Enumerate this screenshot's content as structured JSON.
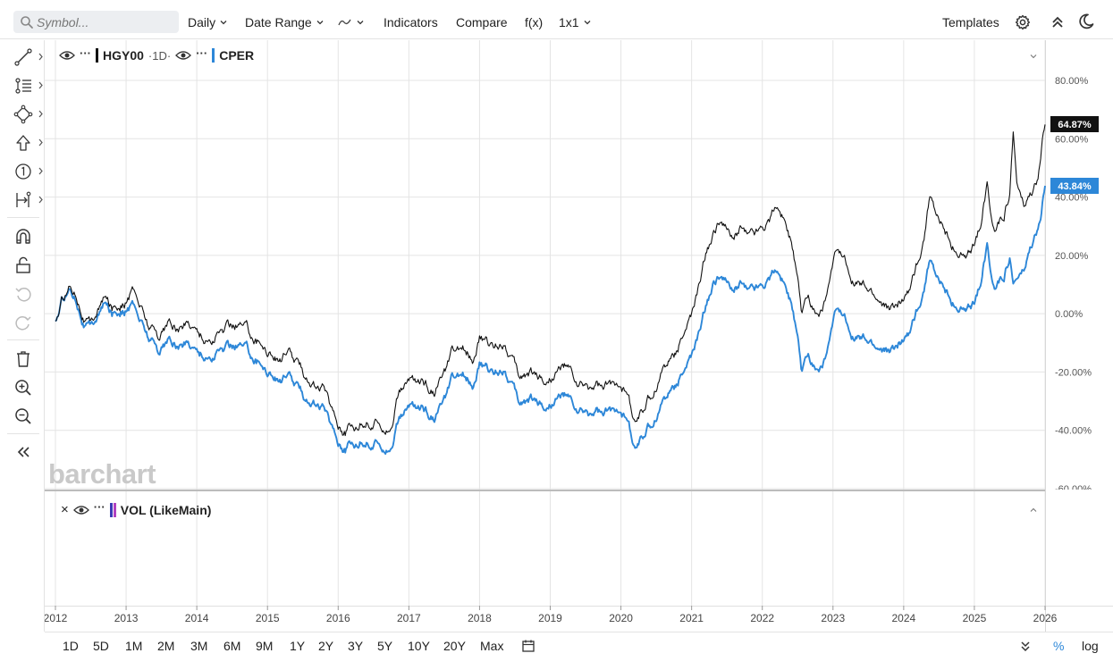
{
  "toolbar": {
    "symbol_placeholder": "Symbol...",
    "interval": "Daily",
    "date_range": "Date Range",
    "indicators": "Indicators",
    "compare": "Compare",
    "fx": "f(x)",
    "layout": "1x1",
    "templates": "Templates"
  },
  "legend": {
    "main_symbol": "HGY00",
    "main_interval": "·1D·",
    "compare_symbol": "CPER",
    "main_color": "#111111",
    "compare_color": "#2d87d8",
    "menu_dots": "···"
  },
  "watermark": "barchart",
  "volume_pane": {
    "label": "VOL (LikeMain)",
    "close": "×",
    "menu_dots": "···"
  },
  "y_axis": {
    "ticks": [
      "80.00%",
      "60.00%",
      "40.00%",
      "20.00%",
      "0.00%",
      "-20.00%",
      "-40.00%",
      "-60.00%"
    ]
  },
  "x_axis": {
    "ticks": [
      "2012",
      "2013",
      "2014",
      "2015",
      "2016",
      "2017",
      "2018",
      "2019",
      "2020",
      "2021",
      "2022",
      "2023",
      "2024",
      "2025",
      "2026"
    ]
  },
  "last_values": {
    "main": "64.87%",
    "compare": "43.84%"
  },
  "bottom": {
    "ranges": [
      "1D",
      "5D",
      "1M",
      "2M",
      "3M",
      "6M",
      "9M",
      "1Y",
      "2Y",
      "3Y",
      "5Y",
      "10Y",
      "20Y",
      "Max"
    ],
    "percent": "%",
    "log": "log"
  },
  "chart_data": {
    "type": "line",
    "ylim": [
      -60,
      80
    ],
    "x_range": [
      2012.0,
      2026.0
    ],
    "series": [
      {
        "name": "HGY00",
        "color": "#111111",
        "points": [
          [
            2012.0,
            -3
          ],
          [
            2012.1,
            5
          ],
          [
            2012.2,
            10
          ],
          [
            2012.3,
            8
          ],
          [
            2012.4,
            0
          ],
          [
            2012.5,
            -4
          ],
          [
            2012.6,
            2
          ],
          [
            2012.7,
            5
          ],
          [
            2012.8,
            2
          ],
          [
            2012.9,
            4
          ],
          [
            2013.0,
            5
          ],
          [
            2013.1,
            8
          ],
          [
            2013.2,
            3
          ],
          [
            2013.3,
            -3
          ],
          [
            2013.45,
            -7
          ],
          [
            2013.6,
            -3
          ],
          [
            2013.75,
            -5
          ],
          [
            2013.9,
            -3
          ],
          [
            2014.0,
            -5
          ],
          [
            2014.1,
            -8
          ],
          [
            2014.2,
            -9
          ],
          [
            2014.3,
            -7
          ],
          [
            2014.45,
            -5
          ],
          [
            2014.6,
            -3
          ],
          [
            2014.75,
            -6
          ],
          [
            2014.9,
            -10
          ],
          [
            2015.0,
            -12
          ],
          [
            2015.15,
            -15
          ],
          [
            2015.3,
            -14
          ],
          [
            2015.4,
            -17
          ],
          [
            2015.5,
            -20
          ],
          [
            2015.6,
            -22
          ],
          [
            2015.7,
            -25
          ],
          [
            2015.8,
            -26
          ],
          [
            2015.9,
            -32
          ],
          [
            2016.0,
            -37
          ],
          [
            2016.1,
            -40
          ],
          [
            2016.25,
            -38
          ],
          [
            2016.4,
            -36
          ],
          [
            2016.5,
            -38
          ],
          [
            2016.6,
            -37
          ],
          [
            2016.75,
            -38
          ],
          [
            2016.85,
            -28
          ],
          [
            2016.95,
            -25
          ],
          [
            2017.05,
            -22
          ],
          [
            2017.2,
            -24
          ],
          [
            2017.35,
            -26
          ],
          [
            2017.5,
            -22
          ],
          [
            2017.6,
            -15
          ],
          [
            2017.7,
            -14
          ],
          [
            2017.8,
            -12
          ],
          [
            2017.9,
            -14
          ],
          [
            2018.0,
            -8
          ],
          [
            2018.1,
            -10
          ],
          [
            2018.2,
            -12
          ],
          [
            2018.35,
            -9
          ],
          [
            2018.45,
            -14
          ],
          [
            2018.55,
            -22
          ],
          [
            2018.7,
            -20
          ],
          [
            2018.85,
            -21
          ],
          [
            2018.95,
            -23
          ],
          [
            2019.05,
            -20
          ],
          [
            2019.2,
            -18
          ],
          [
            2019.3,
            -21
          ],
          [
            2019.4,
            -25
          ],
          [
            2019.55,
            -26
          ],
          [
            2019.65,
            -24
          ],
          [
            2019.75,
            -26
          ],
          [
            2019.9,
            -25
          ],
          [
            2020.0,
            -22
          ],
          [
            2020.1,
            -28
          ],
          [
            2020.2,
            -38
          ],
          [
            2020.3,
            -33
          ],
          [
            2020.45,
            -28
          ],
          [
            2020.6,
            -18
          ],
          [
            2020.75,
            -14
          ],
          [
            2020.9,
            -5
          ],
          [
            2021.0,
            -1
          ],
          [
            2021.1,
            8
          ],
          [
            2021.2,
            20
          ],
          [
            2021.3,
            26
          ],
          [
            2021.4,
            33
          ],
          [
            2021.5,
            28
          ],
          [
            2021.6,
            25
          ],
          [
            2021.7,
            30
          ],
          [
            2021.8,
            27
          ],
          [
            2021.9,
            28
          ],
          [
            2022.0,
            30
          ],
          [
            2022.1,
            33
          ],
          [
            2022.2,
            38
          ],
          [
            2022.3,
            34
          ],
          [
            2022.4,
            25
          ],
          [
            2022.5,
            10
          ],
          [
            2022.55,
            0
          ],
          [
            2022.65,
            5
          ],
          [
            2022.8,
            0
          ],
          [
            2022.9,
            5
          ],
          [
            2023.0,
            15
          ],
          [
            2023.05,
            20
          ],
          [
            2023.15,
            18
          ],
          [
            2023.3,
            12
          ],
          [
            2023.45,
            8
          ],
          [
            2023.6,
            5
          ],
          [
            2023.75,
            2
          ],
          [
            2023.9,
            2
          ],
          [
            2024.0,
            6
          ],
          [
            2024.1,
            10
          ],
          [
            2024.2,
            18
          ],
          [
            2024.3,
            28
          ],
          [
            2024.37,
            42
          ],
          [
            2024.45,
            33
          ],
          [
            2024.6,
            28
          ],
          [
            2024.75,
            22
          ],
          [
            2024.9,
            18
          ],
          [
            2025.0,
            22
          ],
          [
            2025.1,
            32
          ],
          [
            2025.18,
            45
          ],
          [
            2025.25,
            32
          ],
          [
            2025.32,
            30
          ],
          [
            2025.42,
            35
          ],
          [
            2025.5,
            42
          ],
          [
            2025.55,
            62
          ],
          [
            2025.6,
            45
          ],
          [
            2025.7,
            36
          ],
          [
            2025.8,
            40
          ],
          [
            2025.9,
            45
          ],
          [
            2025.95,
            55
          ],
          [
            2026.0,
            64.87
          ]
        ]
      },
      {
        "name": "CPER",
        "color": "#2d87d8",
        "points": [
          [
            2012.0,
            -3
          ],
          [
            2012.1,
            5
          ],
          [
            2012.2,
            9
          ],
          [
            2012.3,
            6
          ],
          [
            2012.4,
            -2
          ],
          [
            2012.5,
            -5
          ],
          [
            2012.6,
            0
          ],
          [
            2012.7,
            3
          ],
          [
            2012.8,
            0
          ],
          [
            2012.9,
            2
          ],
          [
            2013.0,
            2
          ],
          [
            2013.1,
            3
          ],
          [
            2013.2,
            -2
          ],
          [
            2013.3,
            -7
          ],
          [
            2013.45,
            -12
          ],
          [
            2013.6,
            -9
          ],
          [
            2013.75,
            -11
          ],
          [
            2013.9,
            -10
          ],
          [
            2014.0,
            -12
          ],
          [
            2014.1,
            -14
          ],
          [
            2014.2,
            -15
          ],
          [
            2014.3,
            -13
          ],
          [
            2014.45,
            -12
          ],
          [
            2014.6,
            -10
          ],
          [
            2014.75,
            -13
          ],
          [
            2014.9,
            -17
          ],
          [
            2015.0,
            -19
          ],
          [
            2015.15,
            -22
          ],
          [
            2015.3,
            -22
          ],
          [
            2015.4,
            -25
          ],
          [
            2015.5,
            -28
          ],
          [
            2015.6,
            -29
          ],
          [
            2015.7,
            -31
          ],
          [
            2015.8,
            -33
          ],
          [
            2015.9,
            -38
          ],
          [
            2016.0,
            -43
          ],
          [
            2016.1,
            -46
          ],
          [
            2016.25,
            -44
          ],
          [
            2016.4,
            -43
          ],
          [
            2016.5,
            -45
          ],
          [
            2016.6,
            -44
          ],
          [
            2016.75,
            -45
          ],
          [
            2016.85,
            -37
          ],
          [
            2016.95,
            -34
          ],
          [
            2017.05,
            -31
          ],
          [
            2017.2,
            -33
          ],
          [
            2017.35,
            -35
          ],
          [
            2017.5,
            -31
          ],
          [
            2017.6,
            -24
          ],
          [
            2017.7,
            -23
          ],
          [
            2017.8,
            -21
          ],
          [
            2017.9,
            -23
          ],
          [
            2018.0,
            -17
          ],
          [
            2018.1,
            -19
          ],
          [
            2018.2,
            -21
          ],
          [
            2018.35,
            -18
          ],
          [
            2018.45,
            -23
          ],
          [
            2018.55,
            -31
          ],
          [
            2018.7,
            -29
          ],
          [
            2018.85,
            -30
          ],
          [
            2018.95,
            -32
          ],
          [
            2019.05,
            -29
          ],
          [
            2019.2,
            -28
          ],
          [
            2019.3,
            -31
          ],
          [
            2019.4,
            -34
          ],
          [
            2019.55,
            -35
          ],
          [
            2019.65,
            -33
          ],
          [
            2019.75,
            -35
          ],
          [
            2019.9,
            -34
          ],
          [
            2020.0,
            -31
          ],
          [
            2020.1,
            -37
          ],
          [
            2020.2,
            -47
          ],
          [
            2020.3,
            -42
          ],
          [
            2020.45,
            -38
          ],
          [
            2020.6,
            -29
          ],
          [
            2020.75,
            -25
          ],
          [
            2020.9,
            -18
          ],
          [
            2021.0,
            -15
          ],
          [
            2021.1,
            -8
          ],
          [
            2021.2,
            2
          ],
          [
            2021.3,
            9
          ],
          [
            2021.4,
            14
          ],
          [
            2021.5,
            10
          ],
          [
            2021.6,
            7
          ],
          [
            2021.7,
            11
          ],
          [
            2021.8,
            8
          ],
          [
            2021.9,
            9
          ],
          [
            2022.0,
            10
          ],
          [
            2022.1,
            13
          ],
          [
            2022.2,
            16
          ],
          [
            2022.3,
            12
          ],
          [
            2022.4,
            4
          ],
          [
            2022.5,
            -10
          ],
          [
            2022.55,
            -20
          ],
          [
            2022.65,
            -15
          ],
          [
            2022.8,
            -19
          ],
          [
            2022.9,
            -15
          ],
          [
            2023.0,
            -5
          ],
          [
            2023.05,
            0
          ],
          [
            2023.15,
            -2
          ],
          [
            2023.3,
            -7
          ],
          [
            2023.45,
            -10
          ],
          [
            2023.6,
            -12
          ],
          [
            2023.75,
            -13
          ],
          [
            2023.9,
            -12
          ],
          [
            2024.0,
            -8
          ],
          [
            2024.1,
            -5
          ],
          [
            2024.2,
            2
          ],
          [
            2024.3,
            10
          ],
          [
            2024.37,
            20
          ],
          [
            2024.45,
            12
          ],
          [
            2024.6,
            8
          ],
          [
            2024.75,
            3
          ],
          [
            2024.9,
            0
          ],
          [
            2025.0,
            2
          ],
          [
            2025.1,
            12
          ],
          [
            2025.18,
            24
          ],
          [
            2025.25,
            12
          ],
          [
            2025.32,
            10
          ],
          [
            2025.42,
            14
          ],
          [
            2025.5,
            20
          ],
          [
            2025.55,
            10
          ],
          [
            2025.6,
            12
          ],
          [
            2025.7,
            14
          ],
          [
            2025.8,
            22
          ],
          [
            2025.9,
            28
          ],
          [
            2025.95,
            33
          ],
          [
            2026.0,
            43.84
          ]
        ]
      }
    ]
  }
}
